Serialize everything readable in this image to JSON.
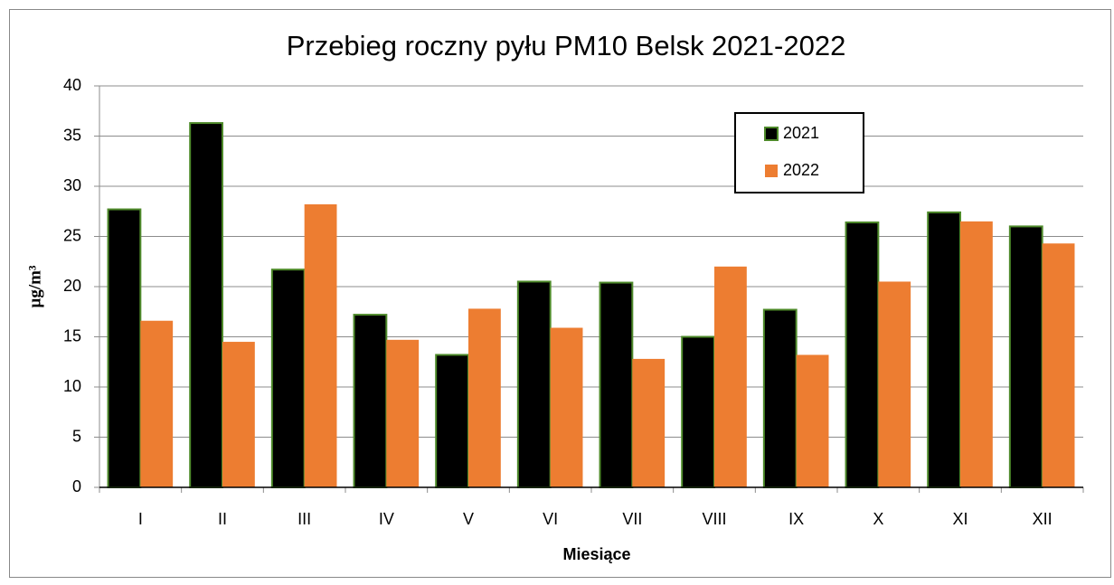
{
  "chart_data": {
    "type": "bar",
    "title": "Przebieg roczny pyłu PM10 Belsk 2021-2022",
    "x_label": "Miesiące",
    "y_label": "µg/m³",
    "categories": [
      "I",
      "II",
      "III",
      "IV",
      "V",
      "VI",
      "VII",
      "VIII",
      "IX",
      "X",
      "XI",
      "XII"
    ],
    "series": [
      {
        "name": "2021",
        "color": "#000000",
        "edge_color": "#4e8a2a",
        "values": [
          27.7,
          36.3,
          21.7,
          17.2,
          13.2,
          20.5,
          20.4,
          15.0,
          17.7,
          26.4,
          27.4,
          26.0
        ]
      },
      {
        "name": "2022",
        "color": "#ed7d31",
        "values": [
          16.6,
          14.5,
          28.2,
          14.7,
          17.8,
          15.9,
          12.8,
          22.0,
          13.2,
          20.5,
          26.5,
          24.3
        ]
      }
    ],
    "ylim": [
      0,
      40
    ],
    "yticks": [
      0,
      5,
      10,
      15,
      20,
      25,
      30,
      35,
      40
    ],
    "grid": true
  }
}
